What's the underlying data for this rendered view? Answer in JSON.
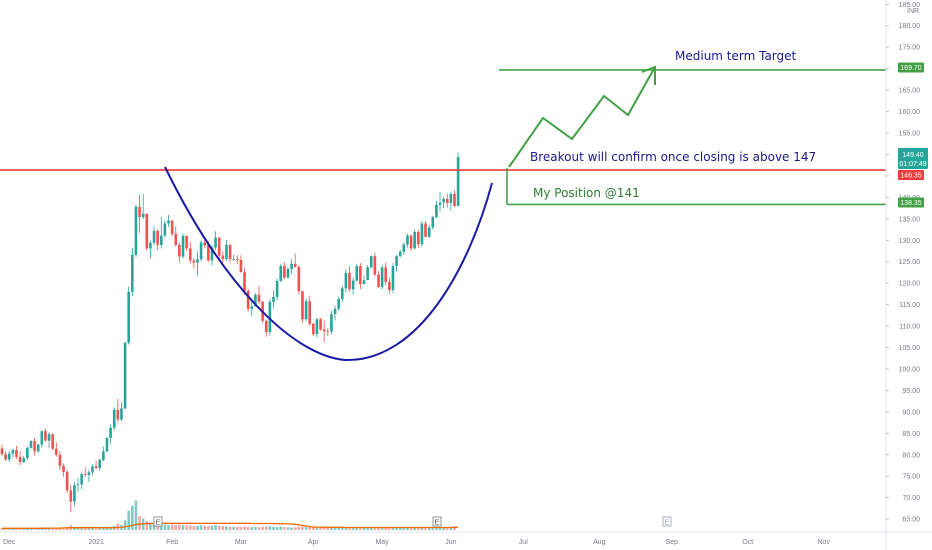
{
  "chart_data": {
    "type": "candlestick",
    "price_axis": {
      "unit": "INR",
      "ticks": [
        65,
        70,
        75,
        80,
        85,
        90,
        95,
        100,
        105,
        110,
        115,
        120,
        125,
        130,
        135,
        140,
        145,
        150,
        155,
        160,
        165,
        170,
        175,
        180,
        185
      ],
      "range": [
        62,
        186
      ]
    },
    "time_axis": {
      "labels": [
        "Dec",
        "2021",
        "Feb",
        "Mar",
        "Apr",
        "May",
        "Jun",
        "Jul",
        "Aug",
        "Sep",
        "Oct",
        "Nov"
      ],
      "index_range": [
        0,
        246
      ],
      "label_index": [
        2,
        26,
        47,
        66,
        86,
        105,
        124,
        144,
        165,
        185,
        206,
        227
      ]
    },
    "price_labels": {
      "last": "149.40",
      "countdown": "01:07:49",
      "resistance": "146.35",
      "target": "169.70",
      "position": "138.35"
    },
    "levels": {
      "resistance": 146.35,
      "target": 169.7,
      "position": 138.35
    },
    "annotations": {
      "target": "Medium term Target",
      "breakout": "Breakout will confirm once closing is above 147",
      "position": "My Position @141"
    },
    "events": [
      "E",
      "E",
      "E"
    ],
    "candles": [
      [
        81.5,
        82.4,
        79.8,
        80.1
      ],
      [
        80.1,
        80.7,
        78.5,
        78.9
      ],
      [
        78.9,
        80.9,
        78.3,
        80.3
      ],
      [
        80.3,
        81.3,
        79.4,
        81.1
      ],
      [
        81.1,
        82.1,
        79.0,
        79.5
      ],
      [
        79.5,
        80.8,
        77.6,
        78.3
      ],
      [
        78.3,
        79.8,
        78.1,
        79.2
      ],
      [
        79.2,
        81.9,
        78.8,
        81.6
      ],
      [
        81.6,
        83.4,
        81.4,
        83.2
      ],
      [
        83.2,
        83.9,
        79.8,
        80.8
      ],
      [
        80.8,
        82.6,
        80.5,
        82.4
      ],
      [
        82.4,
        85.6,
        81.7,
        85.5
      ],
      [
        85.5,
        86.1,
        83.1,
        83.3
      ],
      [
        83.3,
        85.3,
        81.6,
        84.8
      ],
      [
        84.8,
        85.0,
        81.0,
        81.4
      ],
      [
        81.4,
        82.9,
        79.6,
        80.0
      ],
      [
        80.0,
        80.8,
        76.4,
        77.4
      ],
      [
        77.4,
        78.0,
        74.9,
        76.0
      ],
      [
        76.0,
        76.5,
        71.1,
        71.7
      ],
      [
        71.7,
        72.9,
        66.6,
        69.1
      ],
      [
        69.1,
        73.8,
        67.9,
        72.9
      ],
      [
        72.9,
        74.5,
        71.2,
        73.1
      ],
      [
        73.1,
        75.9,
        72.0,
        75.5
      ],
      [
        75.5,
        77.1,
        74.9,
        75.3
      ],
      [
        75.3,
        76.6,
        73.7,
        75.9
      ],
      [
        75.9,
        77.8,
        75.2,
        77.3
      ],
      [
        77.3,
        78.6,
        76.6,
        76.9
      ],
      [
        76.9,
        79.1,
        76.3,
        78.8
      ],
      [
        78.8,
        81.9,
        78.5,
        80.8
      ],
      [
        80.8,
        84.2,
        80.6,
        83.9
      ],
      [
        83.9,
        87.0,
        82.6,
        86.3
      ],
      [
        86.3,
        91.1,
        85.7,
        90.5
      ],
      [
        90.5,
        93.0,
        87.5,
        88.2
      ],
      [
        88.2,
        92.2,
        87.9,
        90.8
      ],
      [
        90.8,
        106.4,
        90.6,
        106.1
      ],
      [
        106.1,
        119.2,
        105.7,
        118.0
      ],
      [
        118.0,
        128.3,
        116.9,
        126.6
      ],
      [
        126.6,
        138.3,
        126.1,
        137.8
      ],
      [
        137.8,
        140.6,
        131.7,
        135.4
      ],
      [
        135.4,
        140.8,
        134.9,
        136.2
      ],
      [
        136.2,
        136.2,
        127.6,
        128.1
      ],
      [
        128.1,
        129.9,
        125.7,
        129.4
      ],
      [
        129.4,
        133.2,
        128.8,
        132.2
      ],
      [
        132.2,
        132.6,
        127.7,
        128.9
      ],
      [
        128.9,
        135.5,
        128.1,
        131.1
      ],
      [
        131.1,
        134.7,
        130.6,
        133.9
      ],
      [
        133.9,
        135.9,
        133.1,
        134.6
      ],
      [
        134.6,
        134.7,
        130.9,
        131.5
      ],
      [
        131.5,
        133.2,
        128.5,
        128.9
      ],
      [
        128.9,
        129.5,
        124.9,
        126.2
      ],
      [
        126.2,
        131.5,
        125.7,
        131.0
      ],
      [
        131.0,
        131.2,
        127.5,
        128.1
      ],
      [
        128.1,
        129.6,
        124.6,
        125.3
      ],
      [
        125.3,
        125.9,
        123.4,
        124.8
      ],
      [
        124.8,
        127.4,
        121.7,
        125.6
      ],
      [
        125.6,
        130.0,
        125.1,
        129.5
      ],
      [
        129.5,
        130.2,
        128.1,
        128.8
      ],
      [
        128.8,
        129.8,
        125.0,
        125.3
      ],
      [
        125.3,
        128.8,
        124.2,
        128.3
      ],
      [
        128.3,
        132.1,
        127.8,
        130.6
      ],
      [
        130.6,
        130.8,
        125.6,
        126.4
      ],
      [
        126.4,
        127.3,
        124.7,
        125.6
      ],
      [
        125.6,
        130.1,
        125.2,
        128.9
      ],
      [
        128.9,
        129.2,
        124.8,
        125.6
      ],
      [
        125.6,
        126.6,
        125.2,
        125.6
      ],
      [
        125.6,
        126.5,
        124.4,
        125.4
      ],
      [
        125.4,
        126.5,
        122.4,
        122.6
      ],
      [
        122.6,
        123.6,
        117.2,
        118.2
      ],
      [
        118.2,
        118.7,
        113.4,
        114.0
      ],
      [
        114.0,
        115.7,
        112.3,
        114.6
      ],
      [
        114.6,
        117.7,
        114.6,
        117.3
      ],
      [
        117.3,
        119.4,
        115.1,
        115.7
      ],
      [
        115.7,
        115.9,
        110.6,
        111.2
      ],
      [
        111.2,
        111.4,
        107.5,
        108.6
      ],
      [
        108.6,
        116.2,
        107.8,
        115.6
      ],
      [
        115.6,
        118.3,
        114.1,
        116.8
      ],
      [
        116.8,
        121.0,
        116.0,
        120.5
      ],
      [
        120.5,
        124.5,
        120.3,
        124.0
      ],
      [
        124.0,
        124.9,
        120.9,
        121.3
      ],
      [
        121.3,
        123.7,
        121.0,
        123.3
      ],
      [
        123.3,
        125.6,
        122.1,
        124.5
      ],
      [
        124.5,
        126.9,
        123.6,
        123.8
      ],
      [
        123.8,
        124.1,
        117.4,
        118.1
      ],
      [
        118.1,
        118.2,
        110.7,
        111.6
      ],
      [
        111.6,
        116.4,
        111.2,
        115.8
      ],
      [
        115.8,
        117.1,
        110.1,
        110.5
      ],
      [
        110.5,
        110.8,
        107.7,
        108.1
      ],
      [
        108.1,
        111.9,
        107.4,
        111.6
      ],
      [
        111.6,
        111.9,
        108.9,
        109.2
      ],
      [
        109.2,
        111.3,
        106.3,
        108.8
      ],
      [
        108.8,
        109.6,
        107.7,
        108.7
      ],
      [
        108.7,
        113.5,
        108.1,
        112.8
      ],
      [
        112.8,
        114.7,
        111.3,
        114.0
      ],
      [
        114.0,
        116.9,
        113.5,
        116.3
      ],
      [
        116.3,
        119.4,
        115.7,
        118.8
      ],
      [
        118.8,
        123.2,
        117.9,
        122.4
      ],
      [
        122.4,
        123.9,
        118.0,
        118.6
      ],
      [
        118.6,
        121.4,
        117.3,
        120.6
      ],
      [
        120.6,
        124.5,
        120.4,
        124.0
      ],
      [
        124.0,
        124.7,
        118.6,
        119.8
      ],
      [
        119.8,
        121.8,
        119.7,
        120.7
      ],
      [
        120.7,
        124.2,
        120.7,
        123.7
      ],
      [
        123.7,
        126.5,
        123.4,
        126.3
      ],
      [
        126.3,
        127.1,
        121.7,
        122.0
      ],
      [
        122.0,
        122.8,
        118.9,
        119.1
      ],
      [
        119.1,
        124.3,
        118.6,
        123.7
      ],
      [
        123.7,
        124.8,
        119.6,
        120.3
      ],
      [
        120.3,
        121.3,
        117.5,
        118.4
      ],
      [
        118.4,
        124.7,
        117.7,
        124.0
      ],
      [
        124.0,
        126.6,
        122.7,
        126.3
      ],
      [
        126.3,
        127.8,
        126.0,
        127.3
      ],
      [
        127.3,
        129.5,
        126.6,
        129.0
      ],
      [
        129.0,
        131.5,
        128.3,
        131.1
      ],
      [
        131.1,
        131.3,
        127.4,
        128.1
      ],
      [
        128.1,
        132.5,
        127.9,
        131.9
      ],
      [
        131.9,
        132.4,
        128.2,
        129.1
      ],
      [
        129.1,
        134.5,
        128.5,
        133.9
      ],
      [
        133.9,
        134.5,
        130.7,
        130.8
      ],
      [
        130.8,
        133.6,
        130.6,
        133.0
      ],
      [
        133.0,
        135.7,
        132.5,
        135.4
      ],
      [
        135.4,
        139.2,
        135.1,
        138.3
      ],
      [
        138.3,
        141.3,
        136.7,
        138.8
      ],
      [
        138.8,
        140.1,
        137.5,
        139.6
      ],
      [
        139.6,
        140.8,
        137.6,
        138.7
      ],
      [
        138.7,
        141.3,
        136.9,
        140.8
      ],
      [
        140.8,
        141.7,
        137.7,
        138.0
      ],
      [
        138.0,
        150.5,
        137.9,
        149.4
      ]
    ],
    "volumes": [
      0.8,
      0.7,
      0.7,
      0.8,
      0.8,
      0.7,
      0.6,
      0.9,
      1.0,
      0.9,
      0.8,
      1.2,
      1.3,
      1.1,
      1.0,
      0.8,
      0.9,
      1.1,
      1.4,
      2.3,
      1.4,
      0.9,
      0.8,
      0.8,
      0.8,
      0.8,
      0.7,
      0.9,
      1.0,
      1.3,
      1.6,
      2.0,
      3.0,
      2.4,
      4.6,
      9.2,
      11.5,
      14.0,
      6.6,
      5.5,
      4.3,
      3.6,
      3.0,
      3.1,
      3.2,
      2.6,
      2.4,
      2.7,
      2.4,
      2.6,
      2.5,
      2.3,
      2.1,
      2.0,
      2.0,
      2.3,
      2.0,
      1.9,
      2.0,
      2.4,
      2.0,
      1.9,
      1.7,
      1.6,
      1.5,
      1.5,
      1.5,
      1.7,
      1.6,
      1.5,
      1.4,
      1.4,
      1.6,
      1.6,
      1.8,
      1.5,
      1.4,
      1.7,
      1.4,
      1.3,
      1.2,
      1.3,
      1.6,
      1.7,
      1.5,
      1.6,
      1.5,
      1.3,
      1.3,
      1.1,
      1.0,
      1.1,
      1.0,
      1.0,
      1.1,
      1.3,
      1.1,
      1.0,
      1.2,
      1.1,
      1.0,
      1.0,
      1.0,
      1.1,
      1.0,
      0.9,
      1.0,
      0.9,
      1.1,
      1.0,
      1.0,
      1.1,
      1.0,
      1.0,
      1.0,
      1.1,
      1.0,
      1.0,
      1.1,
      1.2,
      1.3,
      1.1,
      1.1,
      1.2,
      1.0,
      1.9
    ],
    "volume_ma": [
      0.8,
      0.8,
      0.8,
      0.8,
      0.8,
      0.8,
      0.8,
      0.8,
      0.8,
      0.8,
      0.8,
      0.8,
      0.8,
      0.9,
      0.9,
      0.9,
      0.9,
      1.0,
      1.0,
      1.1,
      1.1,
      1.1,
      1.1,
      1.1,
      1.1,
      1.1,
      1.1,
      1.1,
      1.1,
      1.1,
      1.1,
      1.1,
      1.2,
      1.3,
      1.5,
      1.8,
      2.2,
      2.6,
      2.8,
      2.9,
      3.0,
      3.1,
      3.1,
      3.2,
      3.2,
      3.2,
      3.2,
      3.2,
      3.2,
      3.2,
      3.2,
      3.2,
      3.2,
      3.2,
      3.2,
      3.2,
      3.2,
      3.2,
      3.2,
      3.2,
      3.2,
      3.2,
      3.2,
      3.2,
      3.2,
      3.2,
      3.2,
      3.2,
      3.2,
      3.1,
      3.1,
      3.1,
      3.1,
      3.1,
      3.1,
      3.0,
      3.0,
      3.0,
      2.9,
      2.9,
      2.8,
      2.7,
      2.5,
      2.2,
      1.9,
      1.6,
      1.5,
      1.4,
      1.4,
      1.3,
      1.3,
      1.3,
      1.3,
      1.3,
      1.3,
      1.2,
      1.2,
      1.2,
      1.2,
      1.2,
      1.2,
      1.2,
      1.2,
      1.2,
      1.2,
      1.2,
      1.2,
      1.2,
      1.2,
      1.2,
      1.2,
      1.2,
      1.2,
      1.2,
      1.2,
      1.2,
      1.2,
      1.2,
      1.2,
      1.2,
      1.2,
      1.2,
      1.2,
      1.2,
      1.2,
      1.2,
      1.3
    ],
    "colors": {
      "up": "#26a69a",
      "down": "#ef5350",
      "up_volume": "#80cbc4",
      "down_volume": "#f7a7a5",
      "volume_ma": "#ef6c00",
      "resistance": "#ee3b3b",
      "target": "#43a047",
      "cup": "#1a1aa6",
      "text_annotation": "#1a1a8c",
      "text_target": "#1a1a8c",
      "text_position": "#2e7d32"
    }
  }
}
